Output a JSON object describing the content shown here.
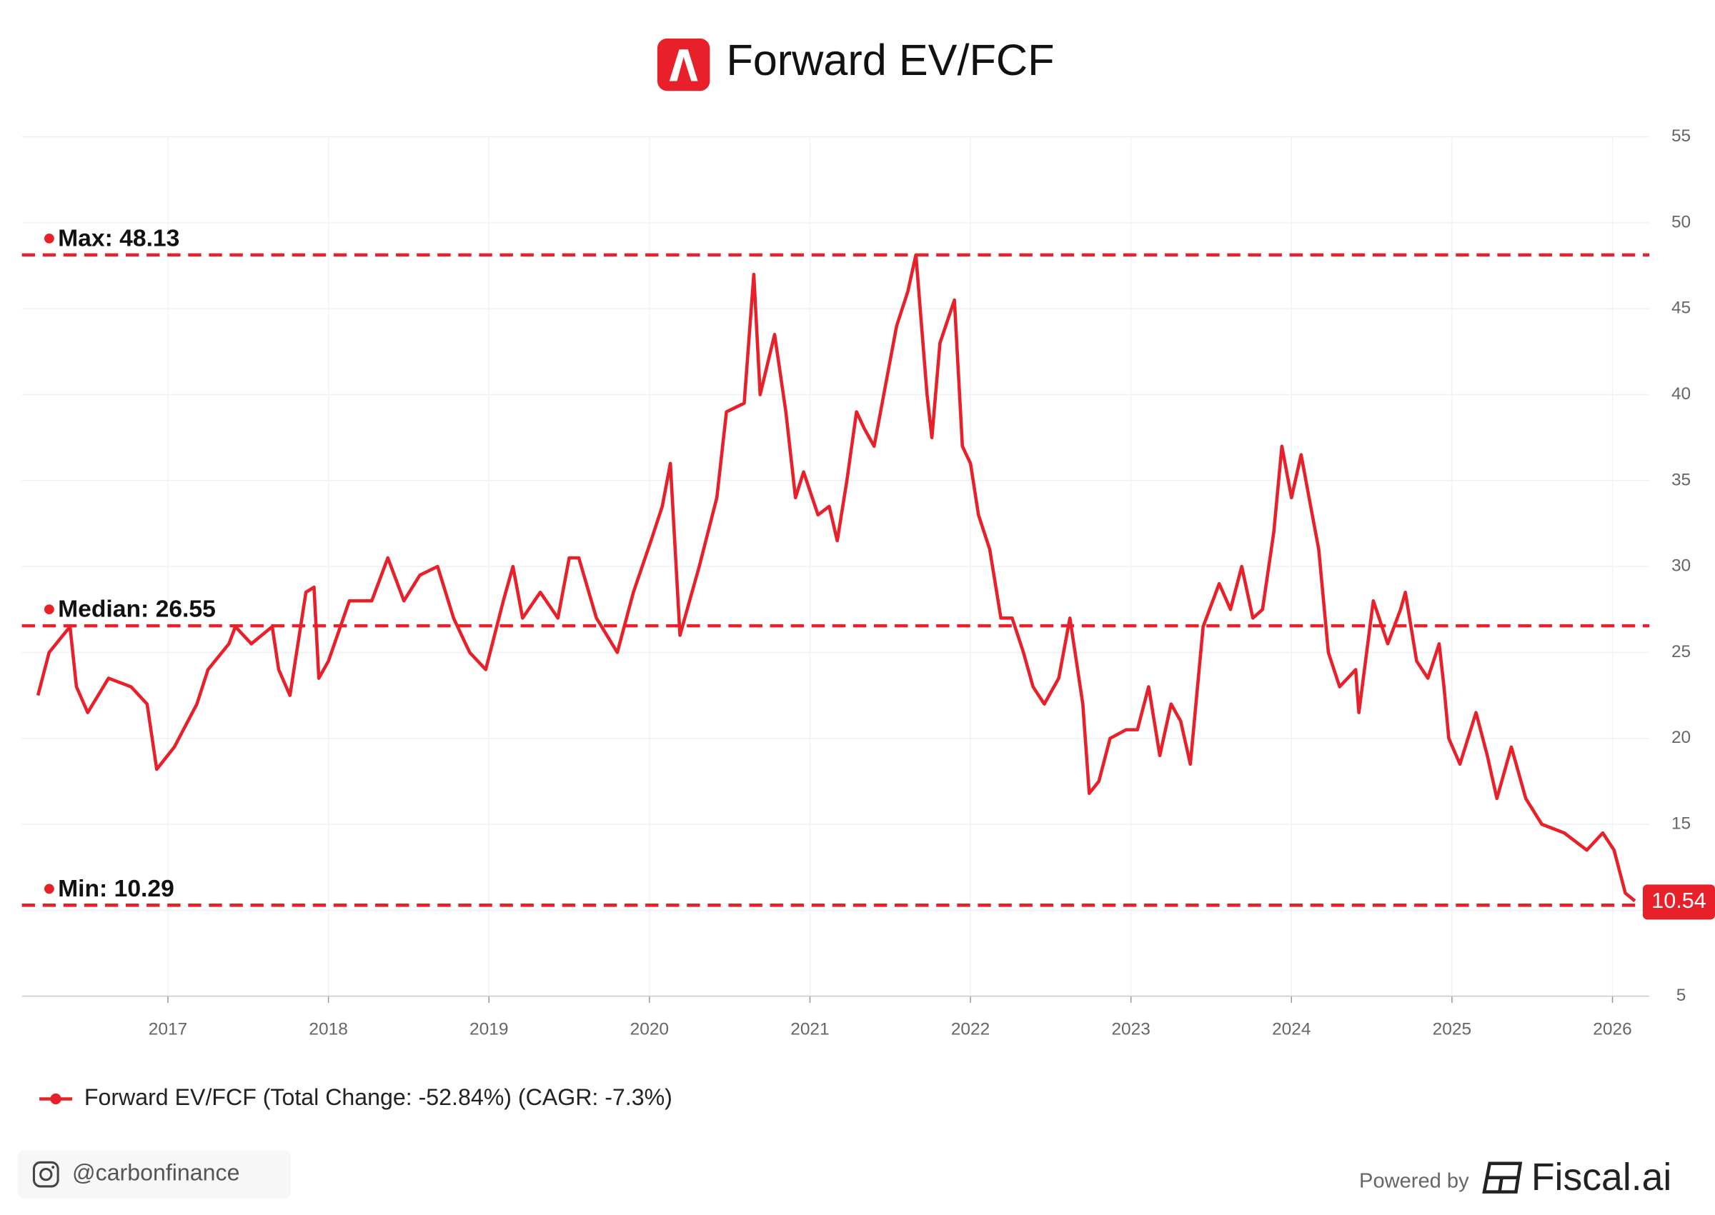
{
  "chart_data": {
    "type": "line",
    "title": "Forward EV/FCF",
    "xlim": [
      2016.09,
      2026.23
    ],
    "xticks": [
      2017,
      2018,
      2019,
      2020,
      2021,
      2022,
      2023,
      2024,
      2025,
      2026
    ],
    "ylim": [
      5,
      55
    ],
    "yticks": [
      5,
      10,
      15,
      20,
      25,
      30,
      35,
      40,
      45,
      50,
      55
    ],
    "grid": true,
    "legend": "bottom-left",
    "series": [
      {
        "name": "Forward EV/FCF (Total Change: -52.84%) (CAGR: -7.3%)",
        "color": "#e8202a",
        "x": [
          2016.19,
          2016.26,
          2016.39,
          2016.43,
          2016.5,
          2016.63,
          2016.77,
          2016.87,
          2016.93,
          2017.04,
          2017.18,
          2017.25,
          2017.38,
          2017.42,
          2017.52,
          2017.65,
          2017.69,
          2017.76,
          2017.86,
          2017.91,
          2017.94,
          2018.0,
          2018.13,
          2018.27,
          2018.37,
          2018.47,
          2018.57,
          2018.68,
          2018.78,
          2018.88,
          2018.98,
          2019.09,
          2019.15,
          2019.21,
          2019.32,
          2019.43,
          2019.5,
          2019.56,
          2019.67,
          2019.8,
          2019.9,
          2020.01,
          2020.08,
          2020.13,
          2020.19,
          2020.25,
          2020.31,
          2020.42,
          2020.48,
          2020.59,
          2020.65,
          2020.69,
          2020.78,
          2020.85,
          2020.91,
          2020.96,
          2021.05,
          2021.12,
          2021.17,
          2021.23,
          2021.29,
          2021.34,
          2021.4,
          2021.46,
          2021.54,
          2021.61,
          2021.66,
          2021.73,
          2021.76,
          2021.81,
          2021.9,
          2021.95,
          2022.0,
          2022.05,
          2022.12,
          2022.19,
          2022.26,
          2022.33,
          2022.39,
          2022.46,
          2022.55,
          2022.62,
          2022.7,
          2022.74,
          2022.8,
          2022.87,
          2022.97,
          2023.04,
          2023.11,
          2023.18,
          2023.25,
          2023.31,
          2023.37,
          2023.45,
          2023.55,
          2023.62,
          2023.69,
          2023.76,
          2023.82,
          2023.89,
          2023.94,
          2024.0,
          2024.06,
          2024.13,
          2024.17,
          2024.23,
          2024.3,
          2024.4,
          2024.42,
          2024.51,
          2024.6,
          2024.68,
          2024.71,
          2024.78,
          2024.85,
          2024.92,
          2024.95,
          2024.98,
          2025.05,
          2025.15,
          2025.22,
          2025.28,
          2025.37,
          2025.46,
          2025.56,
          2025.7,
          2025.84,
          2025.94,
          2026.01,
          2026.08,
          2026.14
        ],
        "values": [
          22.5,
          25,
          26.5,
          23,
          21.5,
          23.5,
          23,
          22,
          18.2,
          19.5,
          22,
          24,
          25.5,
          26.5,
          25.5,
          26.5,
          24,
          22.5,
          28.5,
          28.8,
          23.5,
          24.5,
          28,
          28,
          30.5,
          28,
          29.5,
          30,
          27,
          25,
          24,
          28,
          30,
          27,
          28.5,
          27,
          30.5,
          30.5,
          27,
          25,
          28.5,
          31.5,
          33.5,
          36,
          26,
          28,
          30,
          34,
          39,
          39.5,
          47,
          40,
          43.5,
          39,
          34,
          35.5,
          33,
          33.5,
          31.5,
          35,
          39,
          38,
          37,
          40,
          44,
          46,
          48.13,
          40,
          37.5,
          43,
          45.5,
          37,
          36,
          33,
          31,
          27,
          27,
          25,
          23,
          22,
          23.5,
          27,
          22,
          16.8,
          17.5,
          20,
          20.5,
          20.5,
          23,
          19,
          22,
          21,
          18.5,
          26.5,
          29,
          27.5,
          30,
          27,
          27.5,
          32,
          37,
          34,
          36.5,
          33,
          31,
          25,
          23,
          24,
          21.5,
          28,
          25.5,
          27.5,
          28.5,
          24.5,
          23.5,
          25.5,
          23,
          20,
          18.5,
          21.5,
          19,
          16.5,
          19.5,
          16.5,
          15,
          14.5,
          13.5,
          14.5,
          13.5,
          11,
          10.54
        ]
      }
    ],
    "annotations": [
      {
        "label": "Max: 48.13",
        "value": 48.13
      },
      {
        "label": "Median: 26.55",
        "value": 26.55
      },
      {
        "label": "Min: 10.29",
        "value": 10.29
      }
    ]
  },
  "footer": {
    "handle": "@carbonfinance",
    "powered": "Powered by",
    "brand": "Fiscal.ai"
  }
}
